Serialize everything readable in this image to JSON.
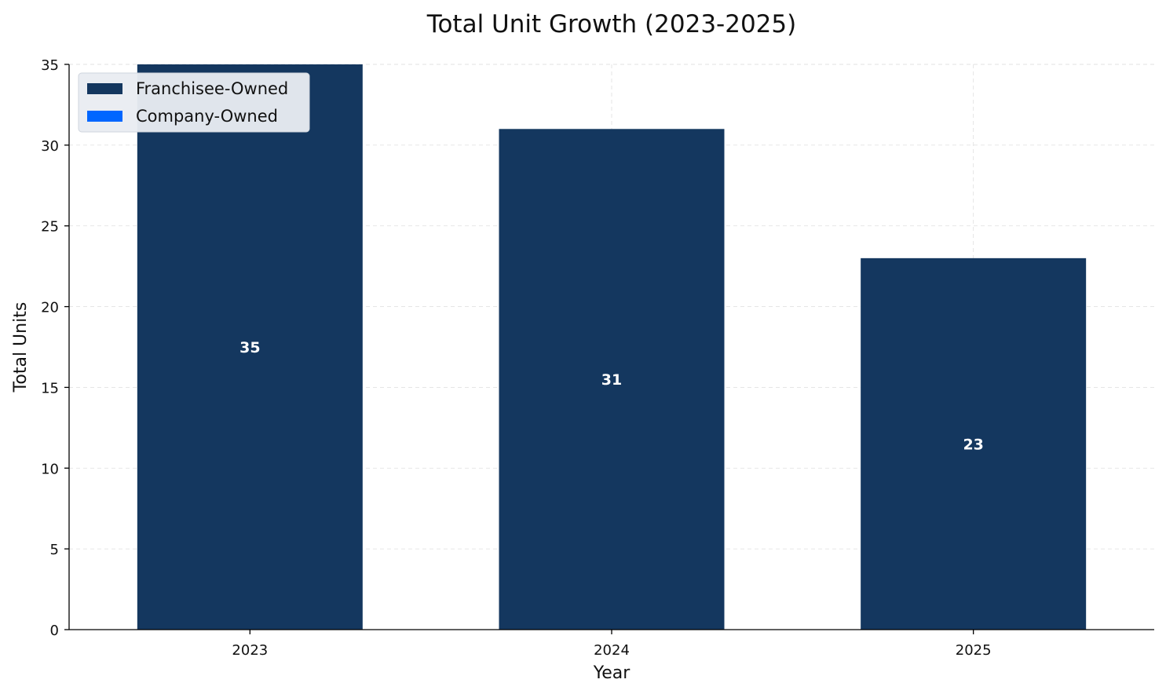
{
  "chart_data": {
    "type": "bar",
    "stacked": true,
    "title": "Total Unit Growth (2023-2025)",
    "xlabel": "Year",
    "ylabel": "Total Units",
    "categories": [
      "2023",
      "2024",
      "2025"
    ],
    "series": [
      {
        "name": "Franchisee-Owned",
        "color": "#14375f",
        "values": [
          35,
          31,
          23
        ]
      },
      {
        "name": "Company-Owned",
        "color": "#0066ff",
        "values": [
          0,
          0,
          0
        ]
      }
    ],
    "totals": [
      35,
      31,
      23
    ],
    "total_labels": [
      "35",
      "31",
      "23"
    ],
    "ylim": [
      0,
      35
    ],
    "yticks": [
      0,
      5,
      10,
      15,
      20,
      25,
      30,
      35
    ],
    "grid": true,
    "legend_position": "top-left"
  }
}
